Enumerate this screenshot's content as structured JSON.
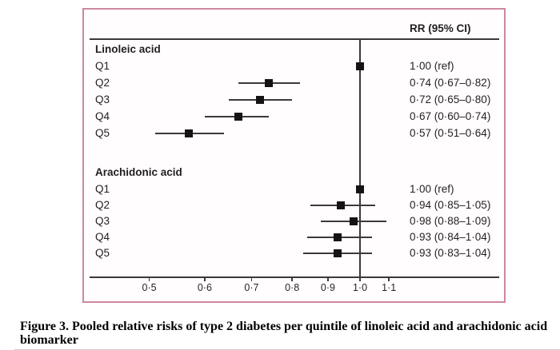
{
  "chart_data": {
    "type": "forest",
    "title": "RR (95% CI)",
    "x_axis": {
      "scale": "log",
      "ticks": [
        0.5,
        0.6,
        0.7,
        0.8,
        0.9,
        1.0,
        1.1
      ],
      "tick_labels": [
        "0·5",
        "0·6",
        "0·7",
        "0·8",
        "0·9",
        "1·0",
        "1·1"
      ],
      "reference_line": 1.0
    },
    "groups": [
      {
        "label": "Linoleic acid",
        "rows": [
          {
            "label": "Q1",
            "rr": 1.0,
            "lo": null,
            "hi": null,
            "text": "1·00 (ref)"
          },
          {
            "label": "Q2",
            "rr": 0.74,
            "lo": 0.67,
            "hi": 0.82,
            "text": "0·74 (0·67–0·82)"
          },
          {
            "label": "Q3",
            "rr": 0.72,
            "lo": 0.65,
            "hi": 0.8,
            "text": "0·72 (0·65–0·80)"
          },
          {
            "label": "Q4",
            "rr": 0.67,
            "lo": 0.6,
            "hi": 0.74,
            "text": "0·67 (0·60–0·74)"
          },
          {
            "label": "Q5",
            "rr": 0.57,
            "lo": 0.51,
            "hi": 0.64,
            "text": "0·57 (0·51–0·64)"
          }
        ]
      },
      {
        "label": "Arachidonic acid",
        "rows": [
          {
            "label": "Q1",
            "rr": 1.0,
            "lo": null,
            "hi": null,
            "text": "1·00 (ref)"
          },
          {
            "label": "Q2",
            "rr": 0.94,
            "lo": 0.85,
            "hi": 1.05,
            "text": "0·94 (0·85–1·05)"
          },
          {
            "label": "Q3",
            "rr": 0.98,
            "lo": 0.88,
            "hi": 1.09,
            "text": "0·98 (0·88–1·09)"
          },
          {
            "label": "Q4",
            "rr": 0.93,
            "lo": 0.84,
            "hi": 1.04,
            "text": "0·93 (0·84–1·04)"
          },
          {
            "label": "Q5",
            "rr": 0.93,
            "lo": 0.83,
            "hi": 1.04,
            "text": "0·93 (0·83–1·04)"
          }
        ]
      }
    ]
  },
  "caption": {
    "line1": "Figure 3. Pooled relative risks of type 2 diabetes per quintile of linoleic acid and arachidonic acid",
    "line2": "biomarker",
    "full_text": "Figure 3. Pooled relative risks of type 2 diabetes per quintile of linoleic acid and arachidonic acid biomarker"
  },
  "colors": {
    "panel_border": "#cd87a3",
    "ink": "#231f20",
    "line": "#3b3a39",
    "marker": "#151313"
  }
}
